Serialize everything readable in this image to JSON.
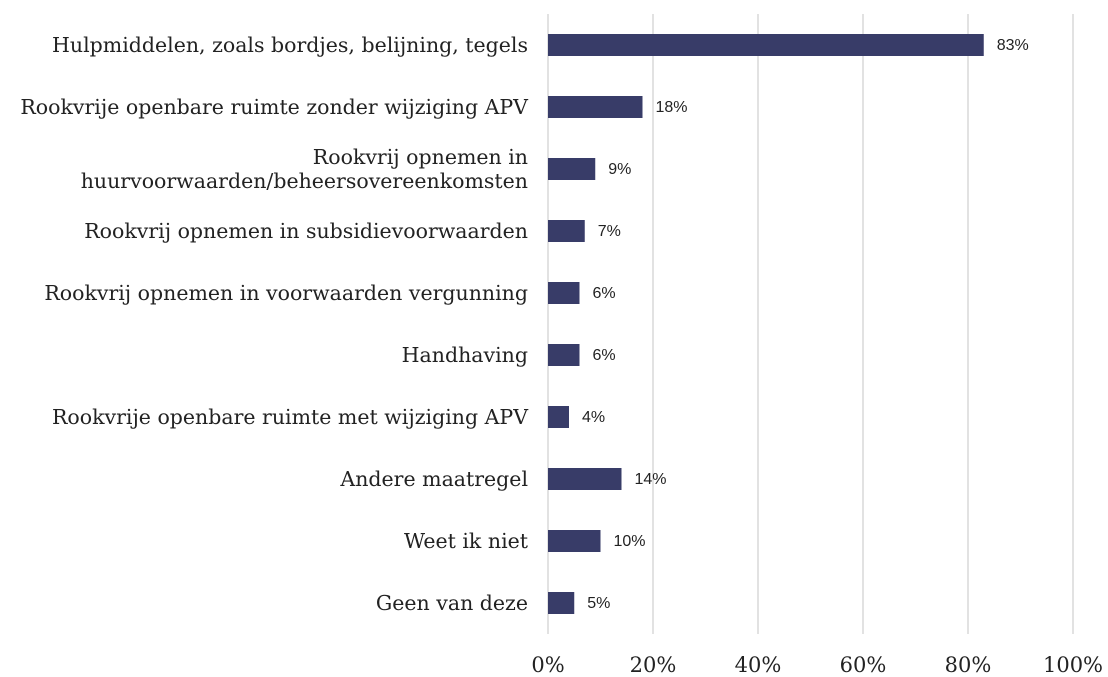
{
  "chart_data": {
    "type": "barh",
    "categories": [
      "Hulpmiddelen, zoals bordjes, belijning, tegels",
      "Rookvrije openbare ruimte zonder wijziging APV",
      "Rookvrij opnemen in huurvoorwaarden/beheersovereenkomsten",
      "Rookvrij opnemen in subsidievoorwaarden",
      "Rookvrij opnemen in voorwaarden vergunning",
      "Handhaving",
      "Rookvrije openbare ruimte met wijziging APV",
      "Andere maatregel",
      "Weet ik niet",
      "Geen van deze"
    ],
    "values": [
      83,
      18,
      9,
      7,
      6,
      6,
      4,
      14,
      10,
      5
    ],
    "value_labels": [
      "83%",
      "18%",
      "9%",
      "7%",
      "6%",
      "6%",
      "4%",
      "14%",
      "10%",
      "5%"
    ],
    "color": "#383c68",
    "xlim": [
      0,
      100
    ],
    "xticks": [
      {
        "value": 0,
        "label": "0%"
      },
      {
        "value": 20,
        "label": "20%"
      },
      {
        "value": 40,
        "label": "40%"
      },
      {
        "value": 60,
        "label": "60%"
      },
      {
        "value": 80,
        "label": "80%"
      },
      {
        "value": 100,
        "label": "100%"
      }
    ],
    "grid": true
  }
}
